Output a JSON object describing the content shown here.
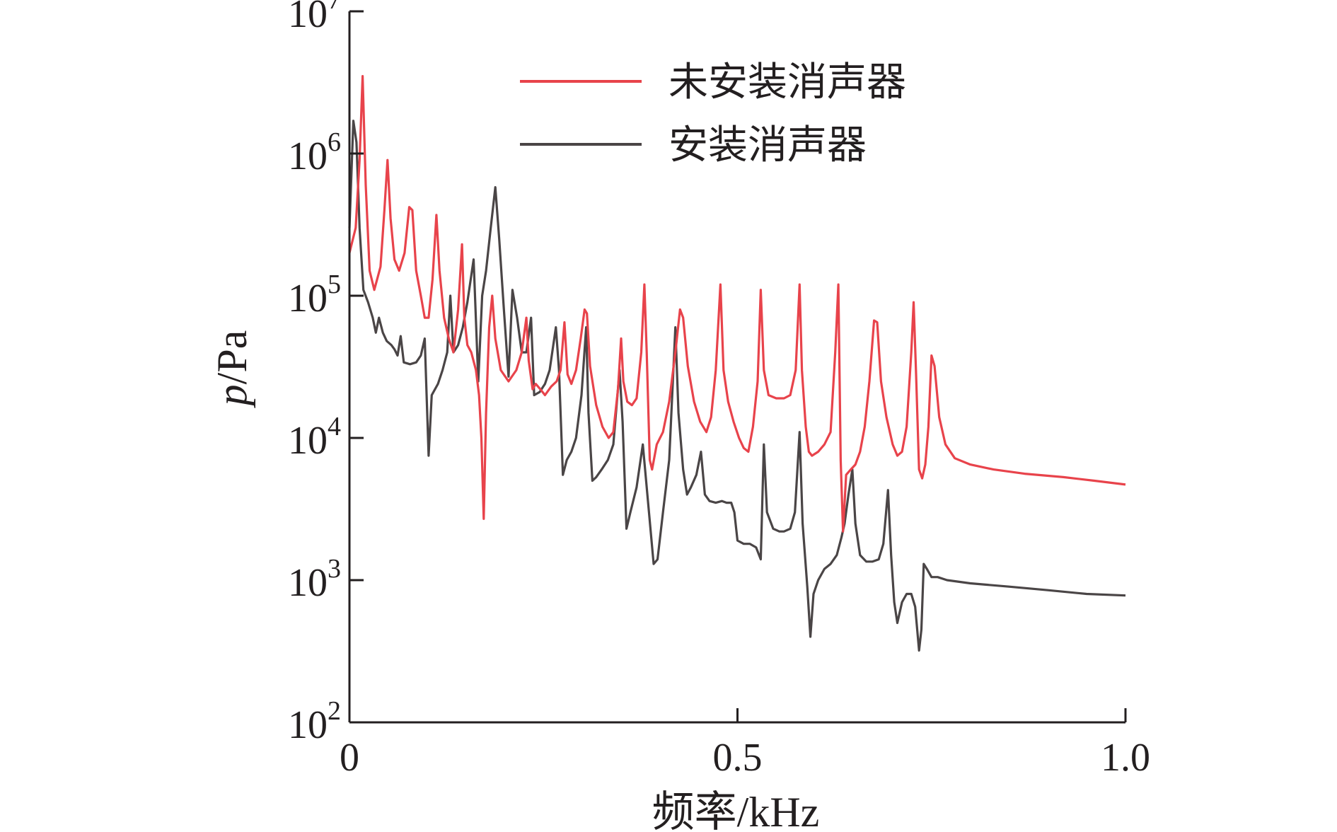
{
  "chart_data": {
    "type": "line",
    "title": "",
    "xlabel": "频率/kHz",
    "ylabel_italic": "p",
    "ylabel_unit": "/Pa",
    "xlim": [
      0,
      1.0
    ],
    "ylim": [
      100,
      10000000
    ],
    "yscale": "log",
    "x_ticks": [
      {
        "value": 0,
        "label": "0"
      },
      {
        "value": 0.5,
        "label": "0.5"
      },
      {
        "value": 1.0,
        "label": "1.0"
      }
    ],
    "y_ticks": [
      {
        "value": 100,
        "base": "10",
        "exp": "2"
      },
      {
        "value": 1000,
        "base": "10",
        "exp": "3"
      },
      {
        "value": 10000,
        "base": "10",
        "exp": "4"
      },
      {
        "value": 100000,
        "base": "10",
        "exp": "5"
      },
      {
        "value": 1000000,
        "base": "10",
        "exp": "6"
      },
      {
        "value": 10000000,
        "base": "10",
        "exp": "7"
      }
    ],
    "grid": false,
    "legend_position": "top-right",
    "series": [
      {
        "name": "未安装消声器",
        "color": "#e8434b",
        "points": [
          [
            0.0,
            200000
          ],
          [
            0.008,
            300000
          ],
          [
            0.013,
            900000
          ],
          [
            0.017,
            3500000
          ],
          [
            0.021,
            600000
          ],
          [
            0.026,
            150000
          ],
          [
            0.032,
            110000
          ],
          [
            0.04,
            160000
          ],
          [
            0.045,
            400000
          ],
          [
            0.049,
            900000
          ],
          [
            0.053,
            350000
          ],
          [
            0.058,
            180000
          ],
          [
            0.064,
            150000
          ],
          [
            0.071,
            200000
          ],
          [
            0.077,
            420000
          ],
          [
            0.081,
            400000
          ],
          [
            0.086,
            150000
          ],
          [
            0.092,
            100000
          ],
          [
            0.097,
            70000
          ],
          [
            0.102,
            70000
          ],
          [
            0.107,
            130000
          ],
          [
            0.112,
            370000
          ],
          [
            0.116,
            150000
          ],
          [
            0.122,
            70000
          ],
          [
            0.128,
            50000
          ],
          [
            0.134,
            40000
          ],
          [
            0.14,
            80000
          ],
          [
            0.145,
            230000
          ],
          [
            0.148,
            70000
          ],
          [
            0.152,
            45000
          ],
          [
            0.157,
            40000
          ],
          [
            0.163,
            30000
          ],
          [
            0.167,
            20000
          ],
          [
            0.17,
            10000
          ],
          [
            0.173,
            2700
          ],
          [
            0.176,
            15000
          ],
          [
            0.18,
            60000
          ],
          [
            0.184,
            100000
          ],
          [
            0.188,
            50000
          ],
          [
            0.195,
            30000
          ],
          [
            0.205,
            25000
          ],
          [
            0.215,
            30000
          ],
          [
            0.222,
            40000
          ],
          [
            0.228,
            70000
          ],
          [
            0.231,
            35000
          ],
          [
            0.236,
            22000
          ],
          [
            0.24,
            24000
          ],
          [
            0.246,
            22000
          ],
          [
            0.252,
            20000
          ],
          [
            0.26,
            23000
          ],
          [
            0.267,
            25000
          ],
          [
            0.272,
            30000
          ],
          [
            0.277,
            65000
          ],
          [
            0.281,
            28000
          ],
          [
            0.286,
            24000
          ],
          [
            0.292,
            30000
          ],
          [
            0.298,
            50000
          ],
          [
            0.303,
            80000
          ],
          [
            0.306,
            75000
          ],
          [
            0.31,
            32000
          ],
          [
            0.318,
            17000
          ],
          [
            0.326,
            12000
          ],
          [
            0.334,
            10000
          ],
          [
            0.34,
            11000
          ],
          [
            0.346,
            22000
          ],
          [
            0.35,
            50000
          ],
          [
            0.353,
            25000
          ],
          [
            0.358,
            18000
          ],
          [
            0.364,
            17000
          ],
          [
            0.37,
            19000
          ],
          [
            0.376,
            40000
          ],
          [
            0.38,
            120000
          ],
          [
            0.383,
            40000
          ],
          [
            0.387,
            7000
          ],
          [
            0.39,
            6000
          ],
          [
            0.396,
            9000
          ],
          [
            0.404,
            11000
          ],
          [
            0.412,
            18000
          ],
          [
            0.42,
            40000
          ],
          [
            0.426,
            80000
          ],
          [
            0.43,
            70000
          ],
          [
            0.436,
            32000
          ],
          [
            0.444,
            18000
          ],
          [
            0.452,
            13000
          ],
          [
            0.46,
            11000
          ],
          [
            0.466,
            14000
          ],
          [
            0.472,
            30000
          ],
          [
            0.478,
            120000
          ],
          [
            0.482,
            30000
          ],
          [
            0.488,
            18000
          ],
          [
            0.495,
            13000
          ],
          [
            0.502,
            10000
          ],
          [
            0.508,
            8500
          ],
          [
            0.514,
            8000
          ],
          [
            0.52,
            12000
          ],
          [
            0.526,
            25000
          ],
          [
            0.53,
            110000
          ],
          [
            0.534,
            30000
          ],
          [
            0.54,
            20000
          ],
          [
            0.55,
            19000
          ],
          [
            0.56,
            19000
          ],
          [
            0.568,
            20000
          ],
          [
            0.575,
            30000
          ],
          [
            0.58,
            120000
          ],
          [
            0.583,
            30000
          ],
          [
            0.588,
            12000
          ],
          [
            0.592,
            8000
          ],
          [
            0.596,
            7500
          ],
          [
            0.604,
            8000
          ],
          [
            0.612,
            9000
          ],
          [
            0.62,
            11000
          ],
          [
            0.626,
            40000
          ],
          [
            0.63,
            120000
          ],
          [
            0.633,
            7000
          ],
          [
            0.636,
            2200
          ],
          [
            0.64,
            5500
          ],
          [
            0.646,
            6000
          ],
          [
            0.652,
            6500
          ],
          [
            0.658,
            8000
          ],
          [
            0.664,
            12000
          ],
          [
            0.67,
            25000
          ],
          [
            0.676,
            67000
          ],
          [
            0.68,
            65000
          ],
          [
            0.685,
            25000
          ],
          [
            0.692,
            14000
          ],
          [
            0.7,
            9000
          ],
          [
            0.706,
            7500
          ],
          [
            0.712,
            8000
          ],
          [
            0.718,
            12000
          ],
          [
            0.724,
            40000
          ],
          [
            0.727,
            90000
          ],
          [
            0.73,
            30000
          ],
          [
            0.734,
            6000
          ],
          [
            0.738,
            5200
          ],
          [
            0.742,
            6500
          ],
          [
            0.746,
            12000
          ],
          [
            0.75,
            38000
          ],
          [
            0.754,
            32000
          ],
          [
            0.76,
            14000
          ],
          [
            0.768,
            9000
          ],
          [
            0.78,
            7200
          ],
          [
            0.8,
            6500
          ],
          [
            0.83,
            6000
          ],
          [
            0.87,
            5600
          ],
          [
            0.92,
            5300
          ],
          [
            0.96,
            5000
          ],
          [
            1.0,
            4700
          ]
        ]
      },
      {
        "name": "安装消声器",
        "color": "#4a4546",
        "points": [
          [
            0.0,
            300000
          ],
          [
            0.005,
            1700000
          ],
          [
            0.009,
            1200000
          ],
          [
            0.013,
            300000
          ],
          [
            0.018,
            110000
          ],
          [
            0.024,
            90000
          ],
          [
            0.03,
            70000
          ],
          [
            0.034,
            55000
          ],
          [
            0.038,
            70000
          ],
          [
            0.043,
            55000
          ],
          [
            0.048,
            48000
          ],
          [
            0.054,
            45000
          ],
          [
            0.058,
            42000
          ],
          [
            0.062,
            38000
          ],
          [
            0.066,
            52000
          ],
          [
            0.07,
            34000
          ],
          [
            0.078,
            33000
          ],
          [
            0.086,
            34000
          ],
          [
            0.092,
            38000
          ],
          [
            0.097,
            50000
          ],
          [
            0.102,
            7500
          ],
          [
            0.106,
            20000
          ],
          [
            0.114,
            24000
          ],
          [
            0.12,
            30000
          ],
          [
            0.126,
            40000
          ],
          [
            0.13,
            100000
          ],
          [
            0.134,
            40000
          ],
          [
            0.14,
            45000
          ],
          [
            0.146,
            60000
          ],
          [
            0.152,
            90000
          ],
          [
            0.16,
            180000
          ],
          [
            0.166,
            25000
          ],
          [
            0.171,
            100000
          ],
          [
            0.176,
            150000
          ],
          [
            0.182,
            300000
          ],
          [
            0.188,
            580000
          ],
          [
            0.193,
            250000
          ],
          [
            0.199,
            80000
          ],
          [
            0.205,
            27000
          ],
          [
            0.21,
            110000
          ],
          [
            0.216,
            70000
          ],
          [
            0.222,
            40000
          ],
          [
            0.228,
            40000
          ],
          [
            0.234,
            70000
          ],
          [
            0.238,
            20000
          ],
          [
            0.245,
            21000
          ],
          [
            0.252,
            24000
          ],
          [
            0.258,
            30000
          ],
          [
            0.266,
            60000
          ],
          [
            0.27,
            30000
          ],
          [
            0.275,
            5500
          ],
          [
            0.28,
            7000
          ],
          [
            0.286,
            8000
          ],
          [
            0.292,
            10000
          ],
          [
            0.299,
            20000
          ],
          [
            0.305,
            60000
          ],
          [
            0.308,
            15000
          ],
          [
            0.313,
            5000
          ],
          [
            0.318,
            5300
          ],
          [
            0.325,
            6000
          ],
          [
            0.333,
            7000
          ],
          [
            0.34,
            9000
          ],
          [
            0.348,
            30000
          ],
          [
            0.352,
            13000
          ],
          [
            0.357,
            2300
          ],
          [
            0.362,
            3000
          ],
          [
            0.37,
            4500
          ],
          [
            0.378,
            9000
          ],
          [
            0.386,
            3000
          ],
          [
            0.392,
            1300
          ],
          [
            0.397,
            1400
          ],
          [
            0.404,
            3000
          ],
          [
            0.412,
            7000
          ],
          [
            0.42,
            60000
          ],
          [
            0.424,
            15000
          ],
          [
            0.43,
            6000
          ],
          [
            0.435,
            4000
          ],
          [
            0.44,
            4500
          ],
          [
            0.447,
            5500
          ],
          [
            0.453,
            8000
          ],
          [
            0.458,
            4000
          ],
          [
            0.464,
            3600
          ],
          [
            0.472,
            3500
          ],
          [
            0.48,
            3600
          ],
          [
            0.486,
            3500
          ],
          [
            0.492,
            3500
          ],
          [
            0.496,
            3000
          ],
          [
            0.5,
            1900
          ],
          [
            0.508,
            1800
          ],
          [
            0.516,
            1800
          ],
          [
            0.524,
            1700
          ],
          [
            0.53,
            1400
          ],
          [
            0.534,
            9000
          ],
          [
            0.538,
            3000
          ],
          [
            0.546,
            2300
          ],
          [
            0.554,
            2200
          ],
          [
            0.56,
            2200
          ],
          [
            0.568,
            2300
          ],
          [
            0.574,
            3000
          ],
          [
            0.58,
            11000
          ],
          [
            0.584,
            2500
          ],
          [
            0.59,
            900
          ],
          [
            0.594,
            400
          ],
          [
            0.598,
            800
          ],
          [
            0.604,
            1000
          ],
          [
            0.612,
            1200
          ],
          [
            0.62,
            1300
          ],
          [
            0.628,
            1500
          ],
          [
            0.634,
            2000
          ],
          [
            0.638,
            2500
          ],
          [
            0.643,
            4000
          ],
          [
            0.648,
            6000
          ],
          [
            0.652,
            2500
          ],
          [
            0.658,
            1500
          ],
          [
            0.666,
            1350
          ],
          [
            0.674,
            1350
          ],
          [
            0.682,
            1400
          ],
          [
            0.688,
            1800
          ],
          [
            0.694,
            4300
          ],
          [
            0.698,
            1500
          ],
          [
            0.702,
            700
          ],
          [
            0.706,
            500
          ],
          [
            0.712,
            700
          ],
          [
            0.718,
            800
          ],
          [
            0.724,
            800
          ],
          [
            0.729,
            650
          ],
          [
            0.734,
            320
          ],
          [
            0.737,
            450
          ],
          [
            0.74,
            1300
          ],
          [
            0.744,
            1200
          ],
          [
            0.75,
            1050
          ],
          [
            0.758,
            1050
          ],
          [
            0.77,
            1000
          ],
          [
            0.8,
            950
          ],
          [
            0.85,
            900
          ],
          [
            0.9,
            850
          ],
          [
            0.95,
            800
          ],
          [
            1.0,
            780
          ]
        ]
      }
    ]
  }
}
